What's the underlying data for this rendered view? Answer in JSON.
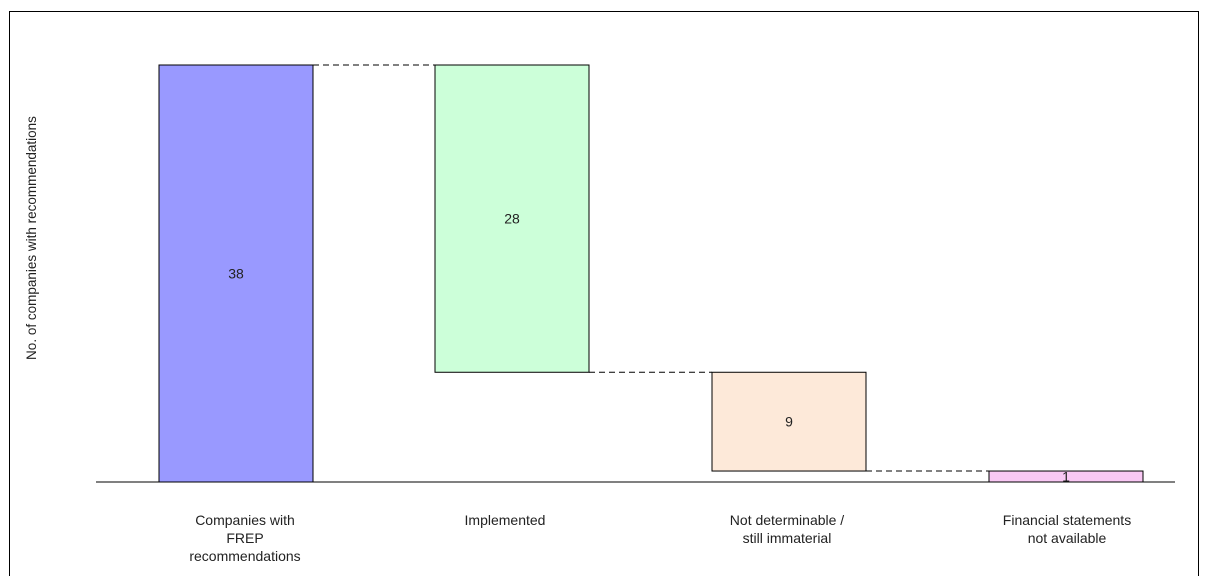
{
  "chart_data": {
    "type": "waterfall",
    "title": "",
    "xlabel": "",
    "ylabel": "No. of companies with recommendations",
    "ylim": [
      0,
      38
    ],
    "grid": false,
    "legend": "none",
    "categories": [
      [
        "Companies with",
        "FREP",
        "recommendations"
      ],
      [
        "Implemented"
      ],
      [
        "Not determinable /",
        "still immaterial"
      ],
      [
        "Financial statements",
        "not available"
      ]
    ],
    "values": [
      38,
      28,
      9,
      1
    ],
    "bar_bottoms": [
      0,
      10,
      1,
      0
    ],
    "bar_tops": [
      38,
      38,
      10,
      1
    ],
    "data_labels": [
      "38",
      "28",
      "9",
      "1"
    ],
    "colors": [
      "#9999ff",
      "#ccffd9",
      "#fde9d9",
      "#f9c8f4"
    ]
  }
}
